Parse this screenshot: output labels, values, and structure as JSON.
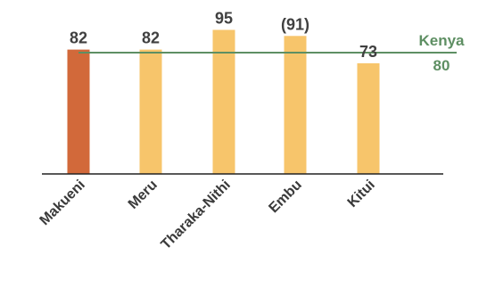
{
  "chart_data": {
    "type": "bar",
    "categories": [
      "Makueni",
      "Meru",
      "Tharaka-Nithi",
      "Embu",
      "Kitui"
    ],
    "values": [
      82,
      82,
      95,
      91,
      73
    ],
    "value_labels": [
      "82",
      "82",
      "95",
      "(91)",
      "73"
    ],
    "ylim": [
      0,
      100
    ],
    "highlight_index": 0,
    "reference_line": {
      "label": "Kenya",
      "value": 80,
      "value_label": "80"
    },
    "colors": {
      "highlight_bar": "#D2693A",
      "bar": "#F7C56B",
      "reference_line": "#5E8F63",
      "axis": "#222222"
    }
  }
}
